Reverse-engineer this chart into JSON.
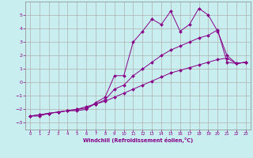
{
  "xlabel": "Windchill (Refroidissement éolien,°C)",
  "bg_color": "#c8eef0",
  "grid_color": "#b0b0b0",
  "line_color": "#880088",
  "xlim": [
    -0.5,
    23.5
  ],
  "ylim": [
    -3.5,
    6.0
  ],
  "xticks": [
    0,
    1,
    2,
    3,
    4,
    5,
    6,
    7,
    8,
    9,
    10,
    11,
    12,
    13,
    14,
    15,
    16,
    17,
    18,
    19,
    20,
    21,
    22,
    23
  ],
  "yticks": [
    -3,
    -2,
    -1,
    0,
    1,
    2,
    3,
    4,
    5
  ],
  "line1_x": [
    0,
    1,
    2,
    3,
    4,
    5,
    6,
    7,
    8,
    9,
    10,
    11,
    12,
    13,
    14,
    15,
    16,
    17,
    18,
    19,
    20,
    21,
    22,
    23
  ],
  "line1_y": [
    -2.5,
    -2.5,
    -2.3,
    -2.2,
    -2.1,
    -2.1,
    -2.0,
    -1.5,
    -1.1,
    0.5,
    0.5,
    3.0,
    3.8,
    4.7,
    4.3,
    5.3,
    3.8,
    4.3,
    5.5,
    5.0,
    3.8,
    2.0,
    1.4,
    1.5
  ],
  "line2_x": [
    0,
    1,
    2,
    3,
    4,
    5,
    6,
    7,
    8,
    9,
    10,
    11,
    12,
    13,
    14,
    15,
    16,
    17,
    18,
    19,
    20,
    21,
    22,
    23
  ],
  "line2_y": [
    -2.5,
    -2.4,
    -2.3,
    -2.2,
    -2.1,
    -2.0,
    -1.9,
    -1.6,
    -1.3,
    -0.5,
    -0.2,
    0.5,
    1.0,
    1.5,
    2.0,
    2.4,
    2.7,
    3.0,
    3.3,
    3.5,
    3.9,
    1.5,
    1.4,
    1.5
  ],
  "line3_x": [
    0,
    1,
    2,
    3,
    4,
    5,
    6,
    7,
    8,
    9,
    10,
    11,
    12,
    13,
    14,
    15,
    16,
    17,
    18,
    19,
    20,
    21,
    22,
    23
  ],
  "line3_y": [
    -2.5,
    -2.4,
    -2.3,
    -2.2,
    -2.1,
    -2.0,
    -1.8,
    -1.6,
    -1.4,
    -1.1,
    -0.8,
    -0.5,
    -0.2,
    0.1,
    0.4,
    0.7,
    0.9,
    1.1,
    1.3,
    1.5,
    1.7,
    1.8,
    1.4,
    1.5
  ]
}
